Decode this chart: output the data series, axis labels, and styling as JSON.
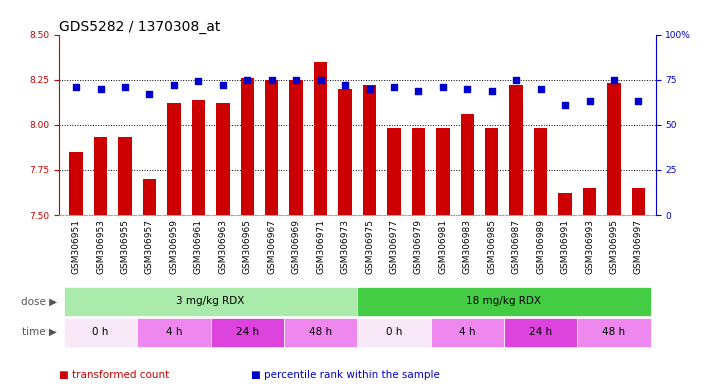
{
  "title": "GDS5282 / 1370308_at",
  "samples": [
    "GSM306951",
    "GSM306953",
    "GSM306955",
    "GSM306957",
    "GSM306959",
    "GSM306961",
    "GSM306963",
    "GSM306965",
    "GSM306967",
    "GSM306969",
    "GSM306971",
    "GSM306973",
    "GSM306975",
    "GSM306977",
    "GSM306979",
    "GSM306981",
    "GSM306983",
    "GSM306985",
    "GSM306987",
    "GSM306989",
    "GSM306991",
    "GSM306993",
    "GSM306995",
    "GSM306997"
  ],
  "bar_values": [
    7.85,
    7.93,
    7.93,
    7.7,
    8.12,
    8.14,
    8.12,
    8.26,
    8.25,
    8.25,
    8.35,
    8.2,
    8.22,
    7.98,
    7.98,
    7.98,
    8.06,
    7.98,
    8.22,
    7.98,
    7.62,
    7.65,
    8.23,
    7.65
  ],
  "dot_values": [
    71,
    70,
    71,
    67,
    72,
    74,
    72,
    75,
    75,
    75,
    75,
    72,
    70,
    71,
    69,
    71,
    70,
    69,
    75,
    70,
    61,
    63,
    75,
    63
  ],
  "ylim_left": [
    7.5,
    8.5
  ],
  "ylim_right": [
    0,
    100
  ],
  "bar_color": "#cc0000",
  "dot_color": "#0000cc",
  "gridline_y": [
    7.75,
    8.0,
    8.25
  ],
  "left_yticks": [
    7.5,
    7.75,
    8.0,
    8.25,
    8.5
  ],
  "right_yticks": [
    0,
    25,
    50,
    75,
    100
  ],
  "right_yticklabels": [
    "0",
    "25",
    "50",
    "75",
    "100%"
  ],
  "dose_groups": [
    {
      "text": "3 mg/kg RDX",
      "start": 0,
      "end": 12,
      "color": "#aaeaaa"
    },
    {
      "text": "18 mg/kg RDX",
      "start": 12,
      "end": 24,
      "color": "#44cc44"
    }
  ],
  "time_groups": [
    {
      "text": "0 h",
      "start": 0,
      "end": 3,
      "color": "#f8e8f8"
    },
    {
      "text": "4 h",
      "start": 3,
      "end": 6,
      "color": "#ee88ee"
    },
    {
      "text": "24 h",
      "start": 6,
      "end": 9,
      "color": "#dd44dd"
    },
    {
      "text": "48 h",
      "start": 9,
      "end": 12,
      "color": "#ee88ee"
    },
    {
      "text": "0 h",
      "start": 12,
      "end": 15,
      "color": "#f8e8f8"
    },
    {
      "text": "4 h",
      "start": 15,
      "end": 18,
      "color": "#ee88ee"
    },
    {
      "text": "24 h",
      "start": 18,
      "end": 21,
      "color": "#dd44dd"
    },
    {
      "text": "48 h",
      "start": 21,
      "end": 24,
      "color": "#ee88ee"
    }
  ],
  "legend": [
    {
      "label": "transformed count",
      "color": "#cc0000"
    },
    {
      "label": "percentile rank within the sample",
      "color": "#0000cc"
    }
  ],
  "bar_width": 0.55,
  "title_fontsize": 10,
  "tick_fontsize": 6.5,
  "annot_fontsize": 7.5,
  "legend_fontsize": 7.5,
  "left_tick_color": "#cc0000",
  "right_tick_color": "#0000cc",
  "sample_area_color": "#d8d8d8",
  "plot_bg_color": "#ffffff"
}
